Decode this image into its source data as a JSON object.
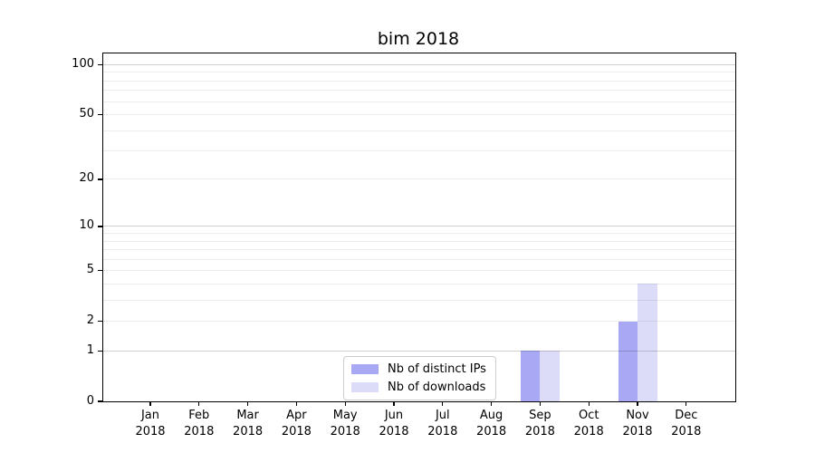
{
  "title": "bim 2018",
  "chart_data": {
    "type": "bar",
    "title": "bim 2018",
    "xlabel": "",
    "ylabel": "",
    "categories": [
      "Jan 2018",
      "Feb 2018",
      "Mar 2018",
      "Apr 2018",
      "May 2018",
      "Jun 2018",
      "Jul 2018",
      "Aug 2018",
      "Sep 2018",
      "Oct 2018",
      "Nov 2018",
      "Dec 2018"
    ],
    "series": [
      {
        "name": "Nb of distinct IPs",
        "color": "#a8a8f4",
        "values": [
          0,
          0,
          0,
          0,
          0,
          0,
          0,
          0,
          1,
          0,
          2,
          0
        ]
      },
      {
        "name": "Nb of downloads",
        "color": "#dcdcf9",
        "values": [
          0,
          0,
          0,
          0,
          0,
          0,
          0,
          0,
          1,
          0,
          4,
          0
        ]
      }
    ],
    "y_scale": "log10(1+v)",
    "y_ticks": [
      0,
      1,
      2,
      5,
      10,
      20,
      50,
      100
    ],
    "gridline_values": [
      1,
      2,
      3,
      4,
      5,
      6,
      7,
      8,
      9,
      10,
      20,
      30,
      40,
      50,
      60,
      70,
      80,
      90,
      100
    ],
    "major_gridline_values": [
      1,
      10,
      100
    ],
    "ylim": [
      0,
      117
    ],
    "grid": true,
    "legend_position": "lower-center"
  },
  "colors": {
    "distinct_ips": "#a8a8f4",
    "downloads": "#dcdcf9",
    "major_grid": "#d0d0d0",
    "minor_grid": "#ececec",
    "axis": "#000000",
    "legend_border": "#cccccc",
    "background": "#ffffff"
  }
}
